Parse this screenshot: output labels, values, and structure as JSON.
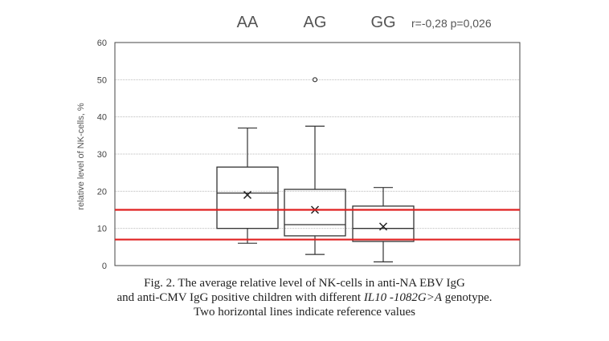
{
  "chart_data": {
    "type": "box",
    "ylabel": "relative level of NK-cells, %",
    "ylim": [
      0,
      60
    ],
    "yticks": [
      0,
      10,
      20,
      30,
      40,
      50,
      60
    ],
    "grid": true,
    "annotation": "r=-0,28 p=0,026",
    "categories": [
      "AA",
      "AG",
      "GG"
    ],
    "boxes": [
      {
        "name": "AA",
        "min": 6,
        "q1": 10,
        "median": 19.5,
        "q3": 26.5,
        "max": 37,
        "mean": 19,
        "outliers": []
      },
      {
        "name": "AG",
        "min": 3,
        "q1": 8,
        "median": 11,
        "q3": 20.5,
        "max": 37.5,
        "mean": 15,
        "outliers": [
          50
        ]
      },
      {
        "name": "GG",
        "min": 1,
        "q1": 6.5,
        "median": 10,
        "q3": 16,
        "max": 21,
        "mean": 10.5,
        "outliers": []
      }
    ],
    "reference_lines": [
      15,
      7
    ],
    "reference_color": "#e02020"
  },
  "caption": {
    "line1": "Fig. 2. The average relative level of NK-cells in anti-NA EBV IgG",
    "line2_prefix": "and anti-CMV IgG positive children with different ",
    "line2_italic": "IL10 -1082G>A",
    "line2_suffix": " genotype.",
    "line3": "Two horizontal lines indicate reference values"
  }
}
